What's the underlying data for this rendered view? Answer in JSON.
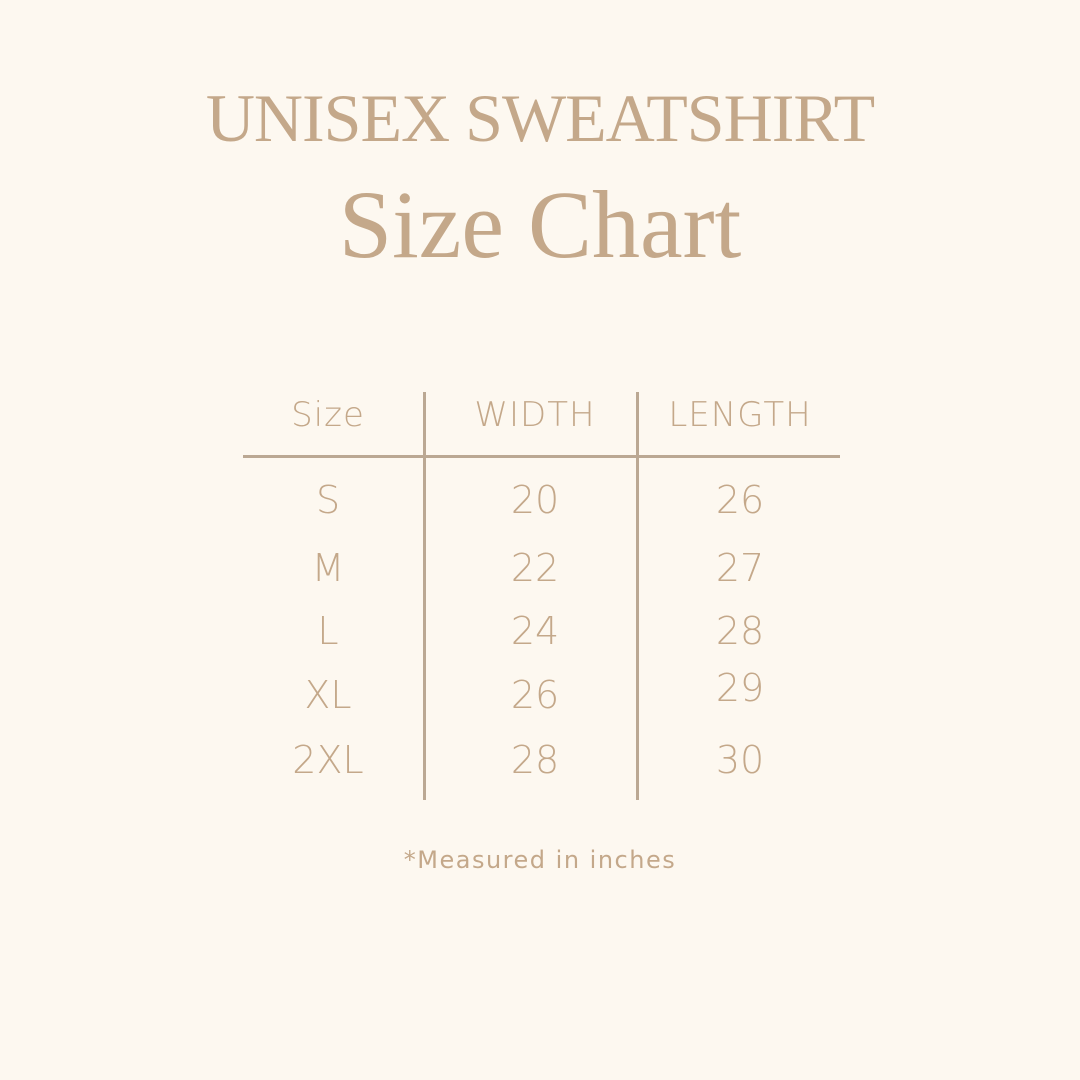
{
  "title": "UNISEX SWEATSHIRT",
  "subtitle": "Size Chart",
  "table": {
    "headers": [
      "Size",
      "WIDTH",
      "LENGTH"
    ],
    "rows": [
      [
        "S",
        "20",
        "26"
      ],
      [
        "M",
        "22",
        "27"
      ],
      [
        "L",
        "24",
        "28"
      ],
      [
        "XL",
        "26",
        "29"
      ],
      [
        "2XL",
        "28",
        "30"
      ]
    ]
  },
  "footnote": "*Measured in inches",
  "colors": {
    "background": "#fdf8f0",
    "text": "#c4a88a",
    "lines": "#bba893"
  }
}
